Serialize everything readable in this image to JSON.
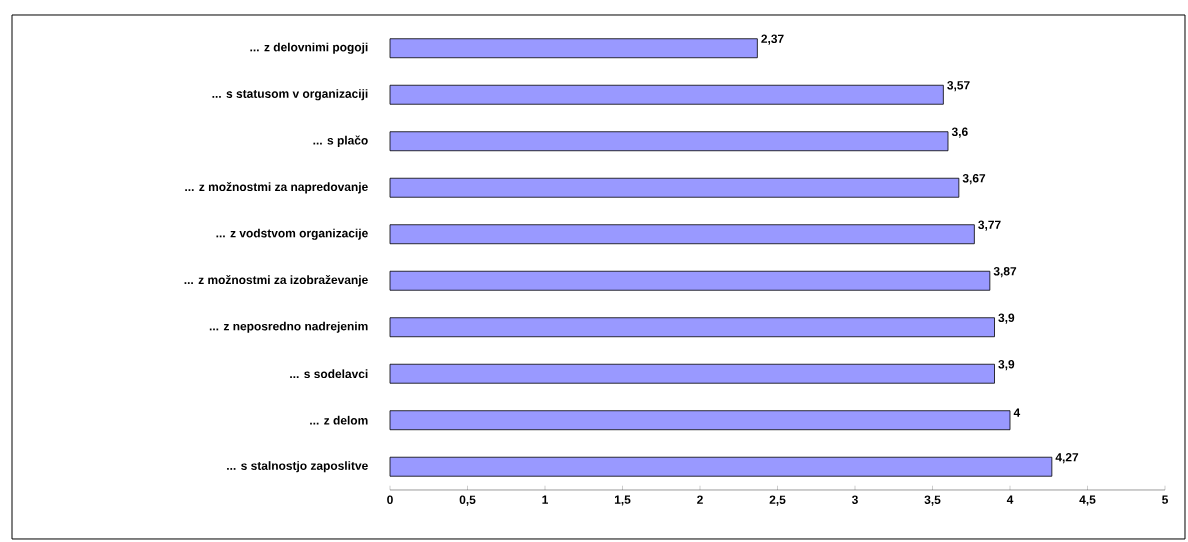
{
  "chart_data": {
    "type": "bar",
    "orientation": "horizontal",
    "categories": [
      "... z delovnimi pogoji",
      "... s statusom v organizaciji",
      "... s plačo",
      "... z možnostmi za napredovanje",
      "... z vodstvom organizacije",
      "... z možnostmi za izobraževanje",
      "... z neposredno nadrejenim",
      "... s sodelavci",
      "... z delom",
      "... s stalnostjo zaposlitve"
    ],
    "values": [
      2.37,
      3.57,
      3.6,
      3.67,
      3.77,
      3.87,
      3.9,
      3.9,
      4,
      4.27
    ],
    "value_labels": [
      "2,37",
      "3,57",
      "3,6",
      "3,67",
      "3,77",
      "3,87",
      "3,9",
      "3,9",
      "4",
      "4,27"
    ],
    "color": "#9999ff",
    "xlim": [
      0,
      5
    ],
    "xticks": [
      0,
      {
        "value": 0.5,
        "label": "0,5"
      },
      1,
      {
        "value": 1.5,
        "label": "1,5"
      },
      2,
      {
        "value": 2.5,
        "label": "2,5"
      },
      3,
      {
        "value": 3.5,
        "label": "3,5"
      },
      4,
      {
        "value": 4.5,
        "label": "4,5"
      },
      5
    ],
    "grid": false
  }
}
